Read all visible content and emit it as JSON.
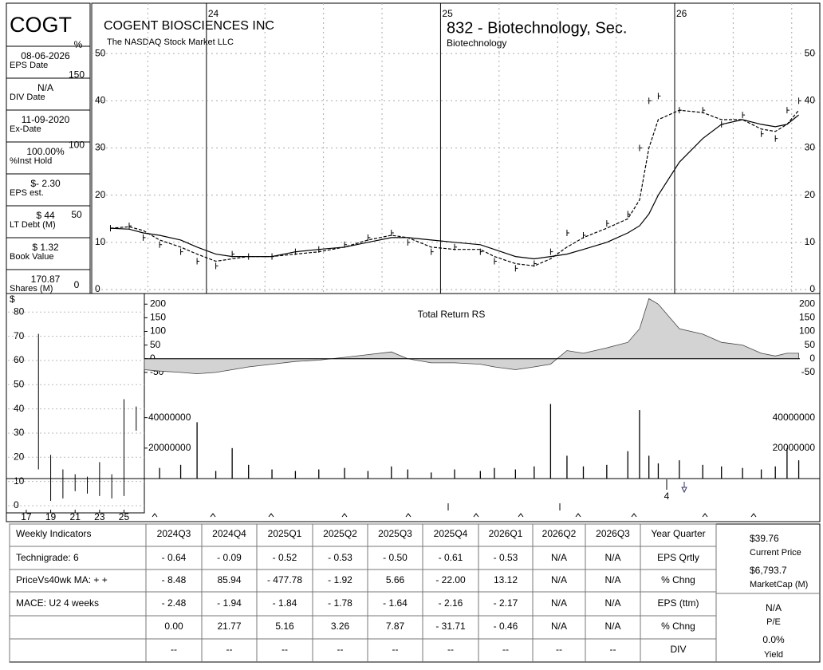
{
  "symbol": "COGT",
  "company": "COGENT BIOSCIENCES INC",
  "exchange": "The NASDAQ Stock Market LLC",
  "group": "832 - Biotechnology, Sec.",
  "industry": "Biotechnology",
  "info": [
    {
      "value": "08-06-2026",
      "label": "EPS Date"
    },
    {
      "value": "N/A",
      "label": "DIV Date"
    },
    {
      "value": "11-09-2020",
      "label": "Ex-Date"
    },
    {
      "value": "100.00%",
      "label": "%Inst Hold"
    },
    {
      "value": "$- 2.30",
      "label": "EPS est."
    },
    {
      "value": "$ 44",
      "label": "LT Debt (M)"
    },
    {
      "value": "$ 1.32",
      "label": "Book Value"
    },
    {
      "value": "170.87",
      "label": "Shares (M)"
    }
  ],
  "chart_data": [
    {
      "type": "line",
      "xlim": [
        2023.51,
        2026.62
      ],
      "xticks": [
        {
          "value": 2024,
          "label": "24"
        },
        {
          "value": 2025,
          "label": "25"
        },
        {
          "value": 2026,
          "label": "26"
        }
      ],
      "ylim": [
        0,
        60
      ],
      "yticks": [
        0,
        10,
        20,
        30,
        40,
        50
      ],
      "y2lim": [
        0,
        199
      ],
      "y2ticks": [
        0,
        50,
        100,
        150
      ],
      "y2label": "%",
      "grid": true,
      "x": [
        2023.59,
        2023.67,
        2023.73,
        2023.8,
        2023.89,
        2023.96,
        2024.04,
        2024.11,
        2024.18,
        2024.28,
        2024.38,
        2024.48,
        2024.59,
        2024.69,
        2024.79,
        2024.86,
        2024.96,
        2025.06,
        2025.17,
        2025.23,
        2025.32,
        2025.4,
        2025.47,
        2025.54,
        2025.61,
        2025.71,
        2025.8,
        2025.85,
        2025.89,
        2025.93,
        2026.02,
        2026.12,
        2026.2,
        2026.29,
        2026.37,
        2026.43,
        2026.48,
        2026.53
      ],
      "series": [
        {
          "style": "tick",
          "color": "#000000",
          "values": [
            13,
            13.5,
            11,
            9.5,
            8,
            6,
            5,
            7.5,
            7,
            7,
            8,
            8.5,
            9.5,
            11,
            12,
            10,
            8,
            9,
            8,
            6,
            4.5,
            5.5,
            8,
            12,
            11.5,
            14,
            16,
            30,
            40,
            41,
            38,
            38,
            35,
            37,
            33,
            32,
            38,
            40
          ]
        },
        {
          "style": "dashed",
          "color": "#000000",
          "values": [
            13,
            13.3,
            12.5,
            10.5,
            9,
            7.5,
            6,
            6.5,
            7,
            7,
            7.5,
            8,
            9,
            10.5,
            11.5,
            11,
            9,
            8.5,
            8.5,
            7,
            5.5,
            5,
            6.5,
            9,
            11,
            13,
            15,
            19,
            30,
            36,
            38,
            37.5,
            36,
            36,
            34,
            33.5,
            35,
            38
          ]
        },
        {
          "style": "solid",
          "color": "#000000",
          "values": [
            13,
            12.8,
            12,
            11.5,
            10.5,
            9,
            7.5,
            7,
            7,
            7,
            8,
            8.5,
            9,
            10,
            11,
            11,
            10.5,
            10,
            9.5,
            8.5,
            7,
            6.5,
            7,
            7.5,
            8.5,
            10,
            12,
            13.5,
            16,
            20,
            27,
            32,
            35,
            36,
            35,
            34.5,
            35,
            37
          ]
        }
      ]
    },
    {
      "type": "area",
      "title": "Total Return RS",
      "color": "#d3d3d3",
      "xlim": [
        2023.51,
        2026.62
      ],
      "ylim": [
        -100,
        230
      ],
      "yticks": [
        -50,
        0,
        50,
        100,
        150,
        200
      ],
      "x": [
        2023.59,
        2023.67,
        2023.73,
        2023.8,
        2023.89,
        2023.96,
        2024.04,
        2024.11,
        2024.18,
        2024.28,
        2024.38,
        2024.48,
        2024.59,
        2024.69,
        2024.79,
        2024.86,
        2024.96,
        2025.06,
        2025.17,
        2025.23,
        2025.32,
        2025.4,
        2025.47,
        2025.54,
        2025.61,
        2025.71,
        2025.8,
        2025.85,
        2025.89,
        2025.93,
        2026.02,
        2026.12,
        2026.2,
        2026.29,
        2026.37,
        2026.43,
        2026.48,
        2026.53
      ],
      "values": [
        -20,
        -30,
        -40,
        -45,
        -50,
        -55,
        -50,
        -40,
        -30,
        -20,
        -10,
        -5,
        5,
        15,
        25,
        0,
        -15,
        -15,
        -20,
        -30,
        -40,
        -30,
        -20,
        30,
        20,
        40,
        60,
        110,
        220,
        200,
        110,
        90,
        60,
        50,
        20,
        10,
        20,
        20
      ]
    },
    {
      "type": "bar",
      "color": "#000000",
      "xlim": [
        2023.51,
        2026.62
      ],
      "ylim": [
        0,
        55000000
      ],
      "yticks": [
        20000000,
        40000000
      ],
      "x": [
        2023.59,
        2023.67,
        2023.73,
        2023.8,
        2023.89,
        2023.96,
        2024.04,
        2024.11,
        2024.18,
        2024.28,
        2024.38,
        2024.48,
        2024.59,
        2024.69,
        2024.79,
        2024.86,
        2024.96,
        2025.06,
        2025.17,
        2025.23,
        2025.32,
        2025.4,
        2025.47,
        2025.54,
        2025.61,
        2025.71,
        2025.8,
        2025.85,
        2025.89,
        2025.93,
        2026.02,
        2026.12,
        2026.2,
        2026.29,
        2026.37,
        2026.43,
        2026.48,
        2026.53
      ],
      "values": [
        3000000,
        5000000,
        6000000,
        7000000,
        9000000,
        37000000,
        5000000,
        20000000,
        9000000,
        6000000,
        5000000,
        6000000,
        7000000,
        5000000,
        8000000,
        6000000,
        4000000,
        6000000,
        5000000,
        7000000,
        6000000,
        8000000,
        49000000,
        15000000,
        8000000,
        9000000,
        18000000,
        45000000,
        15000000,
        10000000,
        12000000,
        9000000,
        8000000,
        7000000,
        6000000,
        8000000,
        20000000,
        12000000
      ],
      "annotation": "4"
    },
    {
      "type": "range",
      "ylabel": "$",
      "xlim": [
        2016,
        2026.6
      ],
      "xticks": [
        {
          "value": 2017,
          "label": "17"
        },
        {
          "value": 2019,
          "label": "19"
        },
        {
          "value": 2021,
          "label": "21"
        },
        {
          "value": 2023,
          "label": "23"
        },
        {
          "value": 2025,
          "label": "25"
        }
      ],
      "ylim": [
        0,
        87
      ],
      "yticks": [
        0,
        10,
        20,
        30,
        40,
        50,
        60,
        70,
        80
      ],
      "x": [
        2018,
        2019,
        2020,
        2021,
        2022,
        2023,
        2024,
        2025,
        2026
      ],
      "high": [
        71,
        21,
        15,
        13,
        12,
        18,
        13,
        44,
        41
      ],
      "low": [
        15,
        2,
        3,
        6,
        5,
        4,
        3,
        4,
        31
      ]
    }
  ],
  "table": {
    "header": [
      "Weekly Indicators",
      "2024Q3",
      "2024Q4",
      "2025Q1",
      "2025Q2",
      "2025Q3",
      "2025Q4",
      "2026Q1",
      "2026Q2",
      "2026Q3",
      "Year Quarter"
    ],
    "rows": [
      [
        "Technigrade: 6",
        "- 0.64",
        "- 0.09",
        "- 0.52",
        "- 0.53",
        "- 0.50",
        "- 0.61",
        "- 0.53",
        "N/A",
        "N/A",
        "EPS Qrtly"
      ],
      [
        "PriceVs40wk MA:  + +",
        "- 8.48",
        "85.94",
        "- 477.78",
        "- 1.92",
        "5.66",
        "- 22.00",
        "13.12",
        "N/A",
        "N/A",
        "% Chng"
      ],
      [
        "MACE: U2  4 weeks",
        "- 2.48",
        "- 1.94",
        "- 1.84",
        "- 1.78",
        "- 1.64",
        "- 2.16",
        "- 2.17",
        "N/A",
        "N/A",
        "EPS (ttm)"
      ],
      [
        null,
        "0.00",
        "21.77",
        "5.16",
        "3.26",
        "7.87",
        "- 31.71",
        "- 0.46",
        "N/A",
        "N/A",
        "% Chng"
      ],
      [
        null,
        "--",
        "--",
        "--",
        "--",
        "--",
        "--",
        "--",
        "--",
        "--",
        "DIV"
      ]
    ]
  },
  "summary": [
    {
      "value": "$39.76",
      "label": "Current Price"
    },
    {
      "value": "$6,793.7",
      "label": "MarketCap (M)"
    },
    {
      "value": "N/A",
      "label": "P/E"
    },
    {
      "value": "0.0%",
      "label": "Yield"
    }
  ]
}
